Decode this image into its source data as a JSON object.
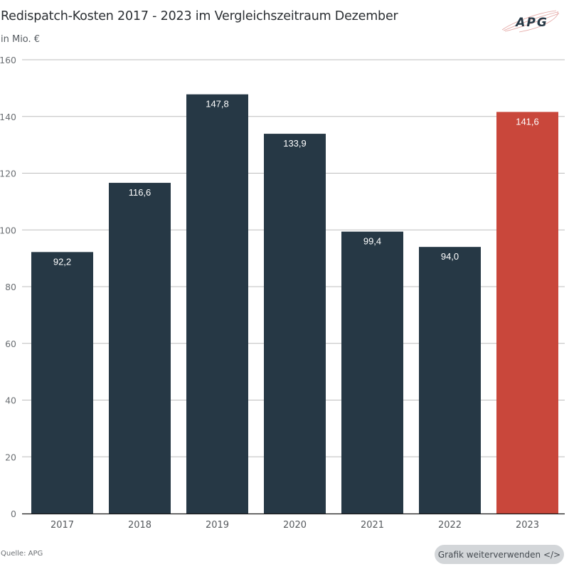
{
  "header": {
    "title": "Redispatch-Kosten 2017 - 2023 im Vergleichszeitraum Dezember",
    "subtitle": "in Mio. €",
    "logo_text": "APG"
  },
  "footer": {
    "source": "Quelle: APG",
    "reuse_button": "Grafik weiterverwenden </>"
  },
  "colors": {
    "bar_default": "#263845",
    "bar_highlight": "#c9473b",
    "gridline": "#bdbdbd",
    "axis": "#1a1a1a"
  },
  "chart_data": {
    "type": "bar",
    "title": "Redispatch-Kosten 2017 - 2023 im Vergleichszeitraum Dezember",
    "subtitle": "in Mio. €",
    "xlabel": "",
    "ylabel": "in Mio. €",
    "categories": [
      "2017",
      "2018",
      "2019",
      "2020",
      "2021",
      "2022",
      "2023"
    ],
    "values": [
      92.2,
      116.6,
      147.8,
      133.9,
      99.4,
      94.0,
      141.6
    ],
    "value_labels": [
      "92,2",
      "116,6",
      "147,8",
      "133,9",
      "99,4",
      "94,0",
      "141,6"
    ],
    "highlight": [
      "2023"
    ],
    "ylim": [
      0,
      160
    ],
    "yticks": [
      0,
      20,
      40,
      60,
      80,
      100,
      120,
      140,
      160
    ],
    "grid": true,
    "legend": "none",
    "source": "Quelle: APG"
  }
}
